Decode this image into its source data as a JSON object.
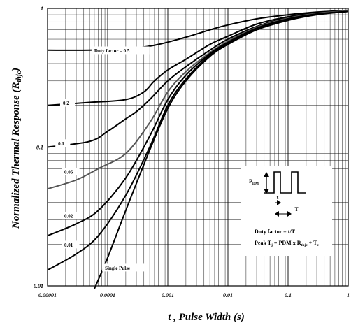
{
  "chart_data": {
    "type": "line",
    "title": "",
    "xlabel": {
      "main": "t , Pulse Width (s)"
    },
    "ylabel": {
      "main": "Normalized Thermal Response (R",
      "sub": "thjc",
      "close": ")"
    },
    "x_scale": "log",
    "y_scale": "log",
    "xlim": [
      1e-05,
      1
    ],
    "ylim": [
      0.01,
      1
    ],
    "x_ticks": [
      "0.00001",
      "0.0001",
      "0.001",
      "0.01",
      "0.1",
      "1"
    ],
    "y_ticks": [
      "0.01",
      "0.1",
      "1"
    ],
    "grid": true,
    "series": [
      {
        "name": "Duty factor = 0.5",
        "points": [
          [
            1e-05,
            0.5
          ],
          [
            5e-05,
            0.5
          ],
          [
            0.0001,
            0.51
          ],
          [
            0.0003,
            0.52
          ],
          [
            0.0007,
            0.55
          ],
          [
            0.002,
            0.62
          ],
          [
            0.005,
            0.7
          ],
          [
            0.01,
            0.76
          ],
          [
            0.03,
            0.84
          ],
          [
            0.1,
            0.9
          ],
          [
            0.3,
            0.94
          ],
          [
            1,
            0.97
          ]
        ]
      },
      {
        "name": "0.2",
        "points": [
          [
            1e-05,
            0.2
          ],
          [
            5e-05,
            0.21
          ],
          [
            0.0002,
            0.22
          ],
          [
            0.0004,
            0.25
          ],
          [
            0.0006,
            0.3
          ],
          [
            0.001,
            0.36
          ],
          [
            0.002,
            0.43
          ],
          [
            0.005,
            0.55
          ],
          [
            0.01,
            0.63
          ],
          [
            0.03,
            0.77
          ],
          [
            0.1,
            0.87
          ],
          [
            0.3,
            0.93
          ],
          [
            1,
            0.96
          ]
        ]
      },
      {
        "name": "0.1",
        "points": [
          [
            1e-05,
            0.1
          ],
          [
            5e-05,
            0.11
          ],
          [
            0.0001,
            0.13
          ],
          [
            0.0002,
            0.16
          ],
          [
            0.0003,
            0.18
          ],
          [
            0.0005,
            0.22
          ],
          [
            0.001,
            0.3
          ],
          [
            0.002,
            0.38
          ],
          [
            0.005,
            0.5
          ],
          [
            0.01,
            0.6
          ],
          [
            0.03,
            0.74
          ],
          [
            0.1,
            0.86
          ],
          [
            0.3,
            0.92
          ],
          [
            1,
            0.96
          ]
        ]
      },
      {
        "name": "0.05",
        "color": "#555555",
        "points": [
          [
            1e-05,
            0.05
          ],
          [
            3e-05,
            0.058
          ],
          [
            7e-05,
            0.07
          ],
          [
            0.0002,
            0.09
          ],
          [
            0.0005,
            0.15
          ],
          [
            0.001,
            0.25
          ],
          [
            0.002,
            0.35
          ],
          [
            0.005,
            0.48
          ],
          [
            0.01,
            0.58
          ],
          [
            0.03,
            0.73
          ],
          [
            0.1,
            0.85
          ],
          [
            0.3,
            0.92
          ],
          [
            1,
            0.96
          ]
        ]
      },
      {
        "name": "0.02",
        "points": [
          [
            1e-05,
            0.023
          ],
          [
            3e-05,
            0.028
          ],
          [
            7e-05,
            0.035
          ],
          [
            0.0002,
            0.06
          ],
          [
            0.0005,
            0.12
          ],
          [
            0.001,
            0.22
          ],
          [
            0.002,
            0.33
          ],
          [
            0.005,
            0.47
          ],
          [
            0.01,
            0.57
          ],
          [
            0.03,
            0.72
          ],
          [
            0.1,
            0.84
          ],
          [
            0.3,
            0.91
          ],
          [
            1,
            0.95
          ]
        ]
      },
      {
        "name": "0.01",
        "points": [
          [
            1e-05,
            0.013
          ],
          [
            3e-05,
            0.017
          ],
          [
            7e-05,
            0.023
          ],
          [
            0.0002,
            0.045
          ],
          [
            0.0005,
            0.1
          ],
          [
            0.001,
            0.2
          ],
          [
            0.002,
            0.31
          ],
          [
            0.005,
            0.46
          ],
          [
            0.01,
            0.56
          ],
          [
            0.03,
            0.71
          ],
          [
            0.1,
            0.83
          ],
          [
            0.3,
            0.91
          ],
          [
            1,
            0.95
          ]
        ]
      },
      {
        "name": "Single Pulse",
        "points": [
          [
            6e-05,
            0.0095
          ],
          [
            0.0001,
            0.016
          ],
          [
            0.0002,
            0.035
          ],
          [
            0.0005,
            0.095
          ],
          [
            0.001,
            0.19
          ],
          [
            0.002,
            0.3
          ],
          [
            0.005,
            0.45
          ],
          [
            0.01,
            0.55
          ],
          [
            0.03,
            0.7
          ],
          [
            0.1,
            0.82
          ],
          [
            0.3,
            0.9
          ],
          [
            1,
            0.95
          ]
        ]
      }
    ],
    "curve_labels": [
      {
        "text": "Duty factor = 0.5",
        "x": 6e-05,
        "y": 0.49
      },
      {
        "text": "0.2",
        "x": 1.8e-05,
        "y": 0.205
      },
      {
        "text": "0.1",
        "x": 1.5e-05,
        "y": 0.105
      },
      {
        "text": "0.05",
        "x": 1.9e-05,
        "y": 0.0655
      },
      {
        "text": "0.02",
        "x": 1.9e-05,
        "y": 0.0315
      },
      {
        "text": "0.01",
        "x": 1.9e-05,
        "y": 0.0195
      },
      {
        "text": "Single Pulse",
        "x": 9e-05,
        "y": 0.0133
      }
    ],
    "inset": {
      "pdm_label": "P",
      "pdm_sub": "DM",
      "t_label": "t",
      "T_label": "T",
      "duty_formula": "Duty factor = t/T",
      "peak_formula": {
        "pre": "Peak T",
        "j": "j",
        "mid": " = PDM x R",
        "thjc": "thjc",
        "plus": " + T",
        "c": "c"
      }
    }
  }
}
